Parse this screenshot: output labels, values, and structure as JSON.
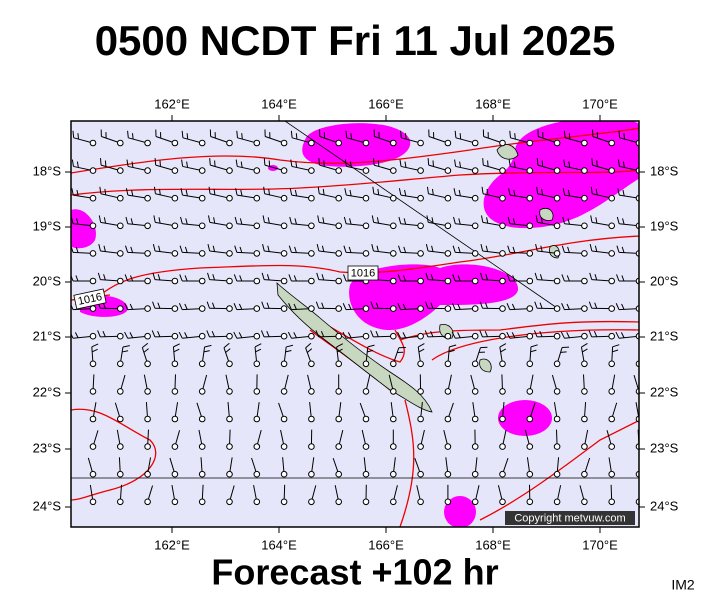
{
  "title": "0500 NCDT Fri 11 Jul 2025",
  "map": {
    "longitude_labels": [
      "162°E",
      "164°E",
      "166°E",
      "168°E",
      "170°E"
    ],
    "latitude_labels": [
      "18°S",
      "19°S",
      "20°S",
      "21°S",
      "22°S",
      "23°S",
      "24°S"
    ],
    "isobar_labels": [
      "1016",
      "1016"
    ],
    "copyright": "Copyright metvuw.com"
  },
  "footer": {
    "forecast": "Forecast +102 hr",
    "image_id": "IM2"
  }
}
